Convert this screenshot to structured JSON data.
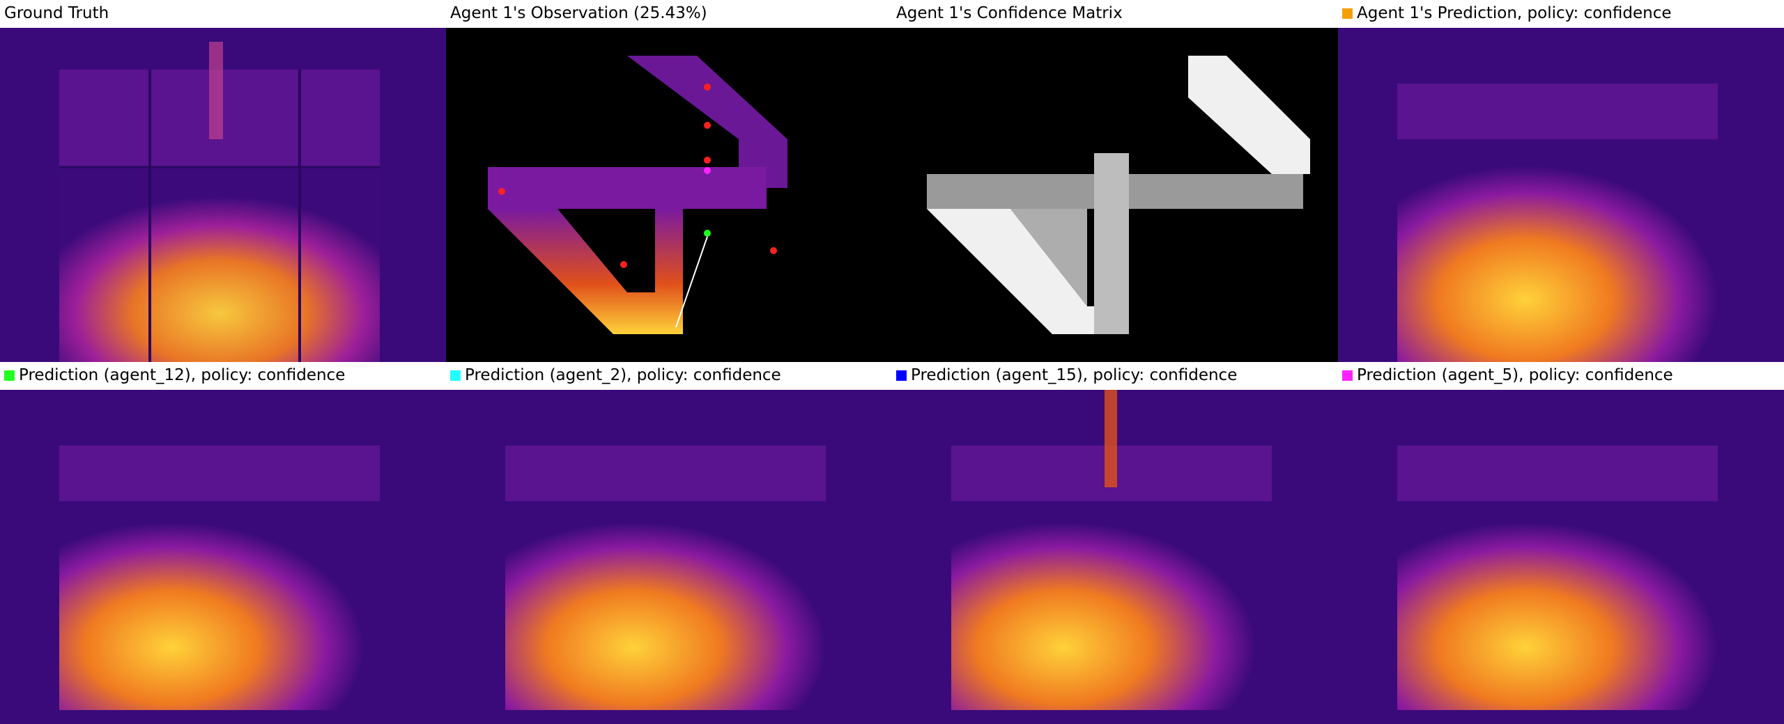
{
  "panels": [
    {
      "title": "Ground Truth",
      "swatch": null
    },
    {
      "title": "Agent 1's Observation (25.43%)",
      "swatch": null
    },
    {
      "title": "Agent 1's Confidence Matrix",
      "swatch": null
    },
    {
      "title": "Agent 1's Prediction, policy: confidence",
      "swatch": "#f5a000"
    },
    {
      "title": "Prediction (agent_12), policy: confidence",
      "swatch": "#22ff22"
    },
    {
      "title": "Prediction (agent_2), policy: confidence",
      "swatch": "#22ffff"
    },
    {
      "title": "Prediction (agent_15), policy: confidence",
      "swatch": "#0000ff"
    },
    {
      "title": "Prediction (agent_5), policy: confidence",
      "swatch": "#ff22ff"
    }
  ],
  "colors": {
    "heat_dark": "#3a0a7a",
    "heat_mid": "#7a1aa0",
    "heat_hot": "#e0501a",
    "heat_bright": "#ffd23a",
    "confidence_white": "#f0f0f0",
    "confidence_gray": "#9a9a9a"
  }
}
